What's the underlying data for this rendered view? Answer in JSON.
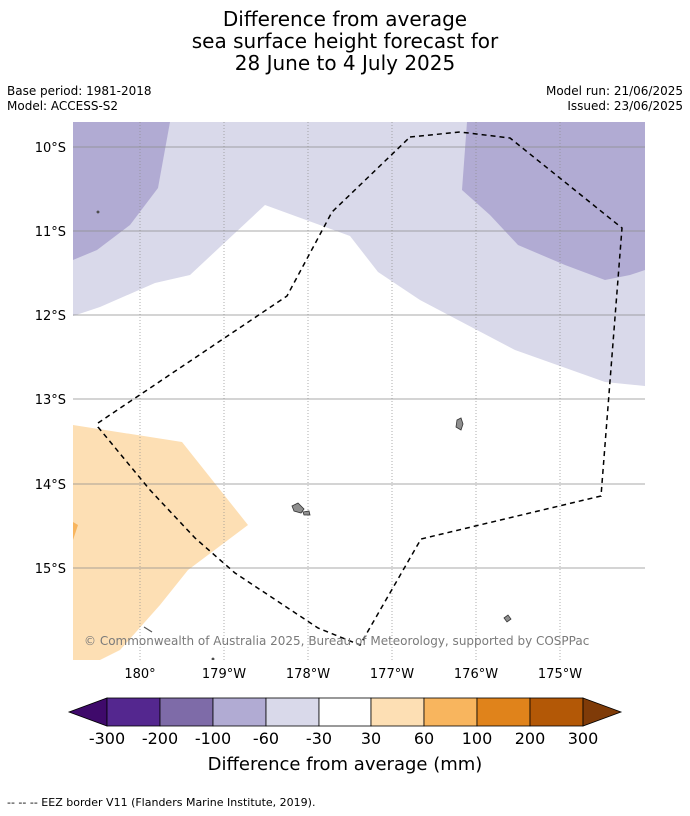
{
  "title": {
    "line1": "Difference from average",
    "line2": "sea surface height forecast for",
    "line3": "28 June to 4 July 2025"
  },
  "meta": {
    "base_period": "Base period: 1981-2018",
    "model": "Model: ACCESS-S2",
    "model_run": "Model run: 21/06/2025",
    "issued": "Issued: 23/06/2025"
  },
  "map": {
    "lat_labels": [
      "10°S",
      "11°S",
      "12°S",
      "13°S",
      "14°S",
      "15°S"
    ],
    "lon_labels": [
      "180°",
      "179°W",
      "178°W",
      "177°W",
      "176°W",
      "175°W"
    ],
    "copyright": "© Commonwealth of Australia 2025, Bureau of Meteorology, supported by COSPPac"
  },
  "colorbar": {
    "ticks": [
      "-300",
      "-200",
      "-100",
      "-60",
      "-30",
      "30",
      "60",
      "100",
      "200",
      "300"
    ],
    "colors": [
      "#3f0a6b",
      "#54278f",
      "#7e6ba8",
      "#b1abd3",
      "#d9d9ea",
      "#ffffff",
      "#fddfb4",
      "#f8b55e",
      "#e0831b",
      "#b35806",
      "#7f3b08"
    ],
    "label": "Difference from average (mm)"
  },
  "footnote": "--  --  -- EEZ border V11 (Flanders Marine Institute, 2019)."
}
